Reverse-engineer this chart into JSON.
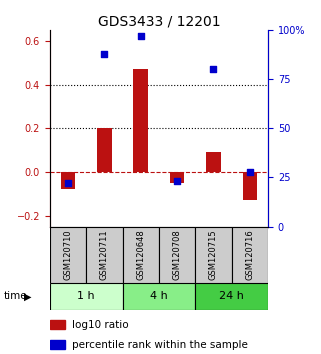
{
  "title": "GDS3433 / 12201",
  "samples": [
    "GSM120710",
    "GSM120711",
    "GSM120648",
    "GSM120708",
    "GSM120715",
    "GSM120716"
  ],
  "log10_ratio": [
    -0.08,
    0.2,
    0.47,
    -0.05,
    0.09,
    -0.13
  ],
  "percentile_rank": [
    22,
    88,
    97,
    23,
    80,
    28
  ],
  "groups": [
    {
      "label": "1 h",
      "indices": [
        0,
        1
      ],
      "color": "#ccffcc"
    },
    {
      "label": "4 h",
      "indices": [
        2,
        3
      ],
      "color": "#88ee88"
    },
    {
      "label": "24 h",
      "indices": [
        4,
        5
      ],
      "color": "#44cc44"
    }
  ],
  "bar_color": "#bb1111",
  "dot_color": "#0000cc",
  "ylim_left": [
    -0.25,
    0.65
  ],
  "ylim_right": [
    0,
    100
  ],
  "yticks_left": [
    -0.2,
    0.0,
    0.2,
    0.4,
    0.6
  ],
  "yticks_right": [
    0,
    25,
    50,
    75,
    100
  ],
  "bar_width": 0.4,
  "dot_size": 25,
  "legend_items": [
    {
      "label": "log10 ratio",
      "color": "#bb1111"
    },
    {
      "label": "percentile rank within the sample",
      "color": "#0000cc"
    }
  ],
  "time_label": "time",
  "sample_box_color": "#cccccc",
  "title_fontsize": 10,
  "tick_fontsize": 7,
  "label_fontsize": 7.5,
  "sample_fontsize": 6,
  "group_fontsize": 8
}
